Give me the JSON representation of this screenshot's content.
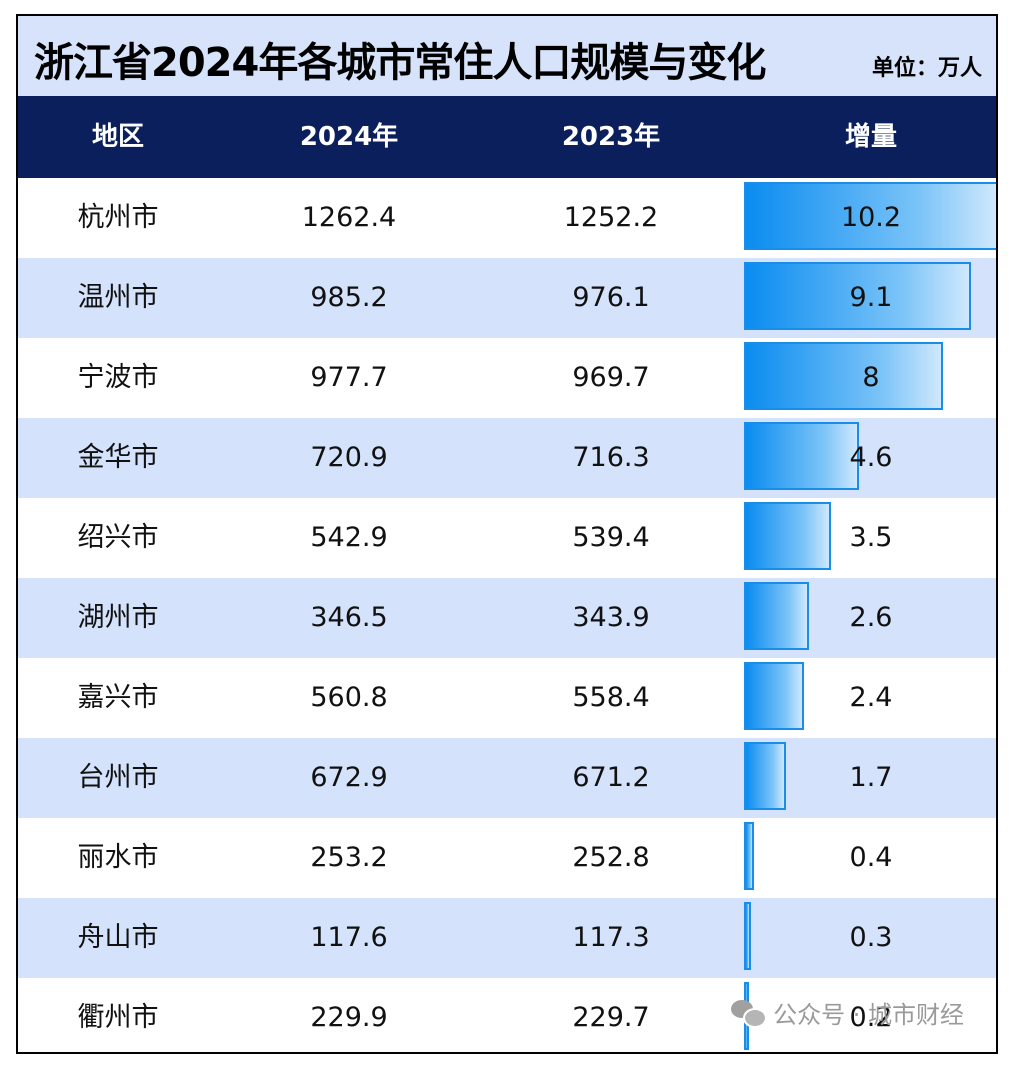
{
  "title": "浙江省2024年各城市常住人口规模与变化",
  "unit_label": "单位：万人",
  "headers": [
    "地区",
    "2024年",
    "2023年",
    "增量"
  ],
  "watermark": "公众号 · 城市财经",
  "colors": {
    "header_bg": "#0b1f5c",
    "title_bg": "#d6e3fb",
    "row_alt": "#d4e2fc",
    "bar": "#0a8cf0"
  },
  "chart_data": {
    "type": "table",
    "columns": [
      "地区",
      "2024年",
      "2023年",
      "增量"
    ],
    "rows": [
      [
        "杭州市",
        "1262.4",
        "1252.2",
        "10.2"
      ],
      [
        "温州市",
        "985.2",
        "976.1",
        "9.1"
      ],
      [
        "宁波市",
        "977.7",
        "969.7",
        "8"
      ],
      [
        "金华市",
        "720.9",
        "716.3",
        "4.6"
      ],
      [
        "绍兴市",
        "542.9",
        "539.4",
        "3.5"
      ],
      [
        "湖州市",
        "346.5",
        "343.9",
        "2.6"
      ],
      [
        "嘉兴市",
        "560.8",
        "558.4",
        "2.4"
      ],
      [
        "台州市",
        "672.9",
        "671.2",
        "1.7"
      ],
      [
        "丽水市",
        "253.2",
        "252.8",
        "0.4"
      ],
      [
        "舟山市",
        "117.6",
        "117.3",
        "0.3"
      ],
      [
        "衢州市",
        "229.9",
        "229.7",
        "0.2"
      ]
    ],
    "bar_column": "增量",
    "bar_max": 10.2
  }
}
